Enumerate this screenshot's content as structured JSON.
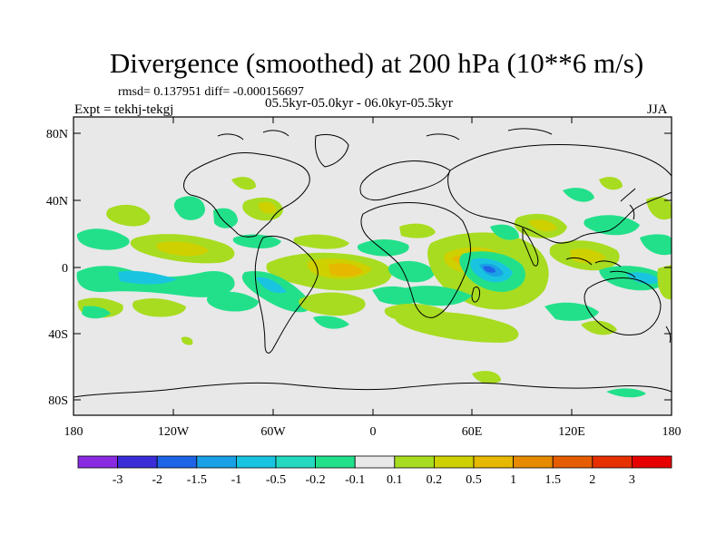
{
  "title": "Divergence (smoothed) at 200 hPa (10**6 m/s)",
  "stats": "rmsd= 0.137951 diff= -0.000156697",
  "subtitle": "05.5kyr-05.0kyr - 06.0kyr-05.5kyr",
  "expt": "Expt = tekhj-tekgj",
  "season": "JJA",
  "lat_labels": [
    "80N",
    "40N",
    "0",
    "40S",
    "80S"
  ],
  "lon_labels": [
    "180",
    "120W",
    "60W",
    "0",
    "60E",
    "120E",
    "180"
  ],
  "colorbar": {
    "colors": [
      "#8a2be2",
      "#3a2cd6",
      "#1e64e6",
      "#1aa0e6",
      "#19c4e0",
      "#24d9c0",
      "#22e08a",
      "#e8e8e8",
      "#a8dc20",
      "#cfd000",
      "#e6b800",
      "#e68a00",
      "#e65c00",
      "#e63000",
      "#e60000"
    ],
    "labels": [
      "-3",
      "-2",
      "-1.5",
      "-1",
      "-0.5",
      "-0.2",
      "-0.1",
      "0.1",
      "0.2",
      "0.5",
      "1",
      "1.5",
      "2",
      "3"
    ]
  },
  "colors": {
    "ocean_background": "#e8e8e8",
    "coastline": "#000000"
  }
}
